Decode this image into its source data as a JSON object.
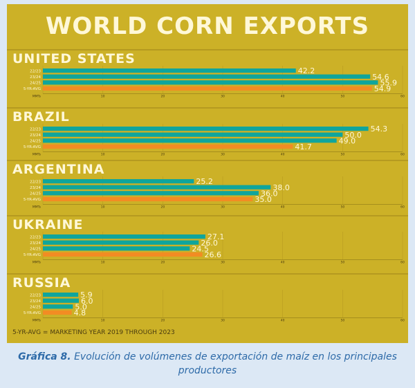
{
  "chart_data": {
    "type": "bar",
    "orientation": "horizontal",
    "title": "WORLD CORN EXPORTS",
    "series": [
      "22/23",
      "23/24",
      "24/25",
      "5-YR-AVG"
    ],
    "xlabel": "MMTs",
    "xlim": [
      0,
      60
    ],
    "ticks": [
      0,
      10,
      20,
      30,
      40,
      50,
      60
    ],
    "footnote": "5-YR-AVG = MARKETING YEAR 2019 THROUGH 2023",
    "colors": {
      "bar": "#0fa59c",
      "avg": "#f28c23",
      "value_label": "#fff8d8"
    },
    "groups": [
      {
        "country": "UNITED STATES",
        "values": [
          42.2,
          54.6,
          55.9,
          54.9
        ]
      },
      {
        "country": "BRAZIL",
        "values": [
          54.3,
          50.0,
          49.0,
          41.7
        ]
      },
      {
        "country": "ARGENTINA",
        "values": [
          25.2,
          38.0,
          36.0,
          35.0
        ]
      },
      {
        "country": "UKRAINE",
        "values": [
          27.1,
          26.0,
          24.5,
          26.6
        ]
      },
      {
        "country": "RUSSIA",
        "values": [
          5.9,
          6.0,
          5.0,
          4.8
        ]
      }
    ]
  },
  "caption": {
    "label": "Gráfica 8.",
    "text": " Evolución de volúmenes de exportación de maíz en los principales productores"
  }
}
